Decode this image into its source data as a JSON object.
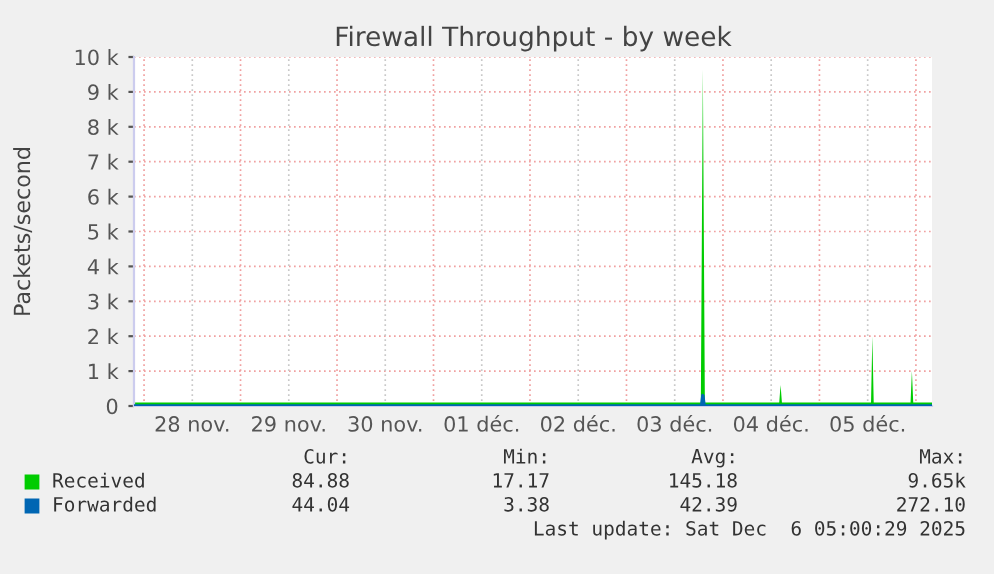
{
  "chart_data": {
    "type": "area",
    "title": "Firewall Throughput - by week",
    "ylabel": "Packets/second",
    "xlim": [
      "2025-11-27T21:30",
      "2025-12-06T04:00"
    ],
    "ylim": [
      0,
      10000
    ],
    "yticks": [
      0,
      {
        "value": 1000,
        "label": "1 k"
      },
      {
        "value": 2000,
        "label": "2 k"
      },
      {
        "value": 3000,
        "label": "3 k"
      },
      {
        "value": 4000,
        "label": "4 k"
      },
      {
        "value": 5000,
        "label": "5 k"
      },
      {
        "value": 6000,
        "label": "6 k"
      },
      {
        "value": 7000,
        "label": "7 k"
      },
      {
        "value": 8000,
        "label": "8 k"
      },
      {
        "value": 9000,
        "label": "9 k"
      },
      {
        "value": 10000,
        "label": "10 k"
      }
    ],
    "xticks": [
      {
        "value": "2025-11-28T00:00",
        "label": null
      },
      {
        "value": "2025-11-28T12:00",
        "label": "28 nov."
      },
      {
        "value": "2025-11-29T00:00",
        "label": null
      },
      {
        "value": "2025-11-29T12:00",
        "label": "29 nov."
      },
      {
        "value": "2025-11-30T00:00",
        "label": null
      },
      {
        "value": "2025-11-30T12:00",
        "label": "30 nov."
      },
      {
        "value": "2025-12-01T00:00",
        "label": null
      },
      {
        "value": "2025-12-01T12:00",
        "label": "01 déc."
      },
      {
        "value": "2025-12-02T00:00",
        "label": null
      },
      {
        "value": "2025-12-02T12:00",
        "label": "02 déc."
      },
      {
        "value": "2025-12-03T00:00",
        "label": null
      },
      {
        "value": "2025-12-03T12:00",
        "label": "03 déc."
      },
      {
        "value": "2025-12-04T00:00",
        "label": null
      },
      {
        "value": "2025-12-04T12:00",
        "label": "04 déc."
      },
      {
        "value": "2025-12-05T00:00",
        "label": null
      },
      {
        "value": "2025-12-05T12:00",
        "label": "05 déc."
      },
      {
        "value": "2025-12-06T00:00",
        "label": null
      }
    ],
    "grid": true,
    "legend": "bottom",
    "series": [
      {
        "name": "Received",
        "color": "#00cc00",
        "x": [
          "2025-11-27T21:30",
          "2025-11-28T06:00",
          "2025-11-28T12:00",
          "2025-11-29T00:00",
          "2025-11-29T12:00",
          "2025-11-30T00:00",
          "2025-11-30T12:00",
          "2025-12-01T00:00",
          "2025-12-01T12:00",
          "2025-12-02T00:00",
          "2025-12-02T12:00",
          "2025-12-03T00:00",
          "2025-12-03T12:00",
          "2025-12-03T18:30",
          "2025-12-03T19:00",
          "2025-12-03T19:30",
          "2025-12-04T06:00",
          "2025-12-04T14:00",
          "2025-12-04T14:20",
          "2025-12-04T14:40",
          "2025-12-05T00:00",
          "2025-12-05T12:50",
          "2025-12-05T13:10",
          "2025-12-05T13:30",
          "2025-12-05T22:40",
          "2025-12-05T23:00",
          "2025-12-05T23:20",
          "2025-12-06T04:00"
        ],
        "values": [
          100,
          100,
          100,
          100,
          100,
          100,
          100,
          100,
          100,
          100,
          100,
          100,
          100,
          100,
          9650,
          100,
          100,
          100,
          600,
          100,
          100,
          100,
          2000,
          100,
          100,
          1000,
          100,
          100
        ]
      },
      {
        "name": "Forwarded",
        "type": "line",
        "color": "#0066b3",
        "x": [
          "2025-11-27T21:30",
          "2025-12-03T18:40",
          "2025-12-03T19:00",
          "2025-12-03T19:20",
          "2025-12-06T04:00"
        ],
        "values": [
          0,
          0,
          300,
          0,
          0
        ]
      }
    ],
    "annotations": [
      "Cur:",
      "Min:",
      "Avg:",
      "Max:",
      "84.88",
      "17.17",
      "145.18",
      "9.65k",
      "44.04",
      "3.38",
      "42.39",
      "272.10",
      "Last update: Sat Dec  6 05:00:29 2025"
    ]
  }
}
